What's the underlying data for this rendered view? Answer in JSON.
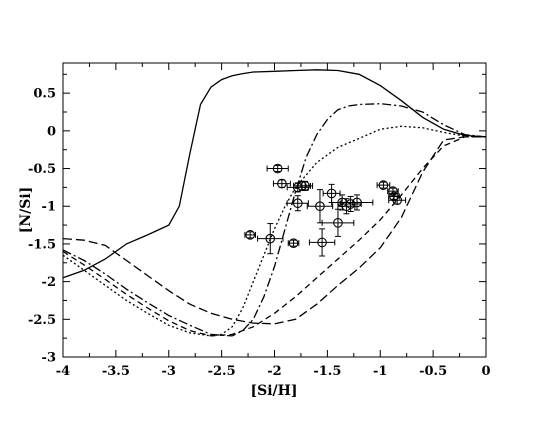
{
  "chart_data": {
    "type": "scatter",
    "xlabel": "[Si/H]",
    "ylabel": "[N/Si]",
    "xlim": [
      -4,
      0
    ],
    "ylim": [
      -3,
      0.9
    ],
    "x_ticks": [
      -4,
      -3.5,
      -3,
      -2.5,
      -2,
      -1.5,
      -1,
      -0.5,
      0
    ],
    "x_tick_labels": [
      "-4",
      "-3.5",
      "-3",
      "-2.5",
      "-2",
      "-1.5",
      "-1",
      "-0.5",
      "0"
    ],
    "y_ticks": [
      -3,
      -2.5,
      -2,
      -1.5,
      -1,
      -0.5,
      0,
      0.5
    ],
    "y_tick_labels": [
      "-3",
      "-2.5",
      "-2",
      "-1.5",
      "-1",
      "-0.5",
      "0",
      "0.5"
    ],
    "grid": false,
    "series": [
      {
        "style": "solid",
        "x": [
          -4,
          -3.8,
          -3.6,
          -3.4,
          -3.2,
          -3.0,
          -2.9,
          -2.8,
          -2.7,
          -2.6,
          -2.5,
          -2.4,
          -2.3,
          -2.2,
          -2.0,
          -1.8,
          -1.6,
          -1.4,
          -1.2,
          -1.0,
          -0.8,
          -0.6,
          -0.4,
          -0.2,
          0
        ],
        "y": [
          -1.95,
          -1.85,
          -1.7,
          -1.5,
          -1.38,
          -1.25,
          -1.0,
          -0.3,
          0.35,
          0.58,
          0.68,
          0.73,
          0.76,
          0.78,
          0.79,
          0.8,
          0.81,
          0.8,
          0.75,
          0.6,
          0.4,
          0.18,
          0.02,
          -0.06,
          -0.08
        ]
      },
      {
        "style": "dash",
        "x": [
          -4,
          -3.8,
          -3.6,
          -3.4,
          -3.2,
          -3.0,
          -2.8,
          -2.6,
          -2.4,
          -2.2,
          -2.0,
          -1.8,
          -1.6,
          -1.4,
          -1.2,
          -1.0,
          -0.8,
          -0.6,
          -0.4,
          -0.2,
          0
        ],
        "y": [
          -1.43,
          -1.45,
          -1.52,
          -1.72,
          -1.92,
          -2.12,
          -2.3,
          -2.42,
          -2.5,
          -2.55,
          -2.56,
          -2.5,
          -2.3,
          -2.05,
          -1.82,
          -1.55,
          -1.15,
          -0.55,
          -0.12,
          -0.08,
          -0.08
        ]
      },
      {
        "style": "dashdot",
        "x": [
          -4,
          -3.8,
          -3.6,
          -3.4,
          -3.2,
          -3.0,
          -2.8,
          -2.6,
          -2.4,
          -2.3,
          -2.2,
          -2.1,
          -2.0,
          -1.9,
          -1.8,
          -1.7,
          -1.6,
          -1.5,
          -1.4,
          -1.3,
          -1.2,
          -1.0,
          -0.8,
          -0.6,
          -0.4,
          -0.2,
          0
        ],
        "y": [
          -1.58,
          -1.72,
          -1.9,
          -2.1,
          -2.28,
          -2.45,
          -2.58,
          -2.7,
          -2.72,
          -2.65,
          -2.5,
          -2.2,
          -1.8,
          -1.3,
          -0.8,
          -0.35,
          -0.05,
          0.15,
          0.28,
          0.33,
          0.35,
          0.36,
          0.33,
          0.25,
          0.08,
          -0.05,
          -0.08
        ]
      },
      {
        "style": "dot",
        "x": [
          -4,
          -3.8,
          -3.6,
          -3.4,
          -3.2,
          -3.0,
          -2.8,
          -2.6,
          -2.5,
          -2.4,
          -2.3,
          -2.2,
          -2.1,
          -2.0,
          -1.9,
          -1.8,
          -1.6,
          -1.4,
          -1.2,
          -1.0,
          -0.8,
          -0.6,
          -0.4,
          -0.2,
          0
        ],
        "y": [
          -1.65,
          -1.85,
          -2.05,
          -2.25,
          -2.42,
          -2.58,
          -2.68,
          -2.72,
          -2.7,
          -2.6,
          -2.35,
          -2.0,
          -1.65,
          -1.3,
          -1.0,
          -0.75,
          -0.42,
          -0.22,
          -0.1,
          0.02,
          0.06,
          0.04,
          -0.02,
          -0.07,
          -0.08
        ]
      },
      {
        "style": "longdash",
        "x": [
          -4,
          -3.8,
          -3.6,
          -3.4,
          -3.2,
          -3.0,
          -2.8,
          -2.6,
          -2.4,
          -2.2,
          -2.0,
          -1.8,
          -1.6,
          -1.4,
          -1.2,
          -1.0,
          -0.8,
          -0.6,
          -0.4,
          -0.2,
          0
        ],
        "y": [
          -1.6,
          -1.78,
          -1.97,
          -2.17,
          -2.35,
          -2.52,
          -2.65,
          -2.72,
          -2.7,
          -2.6,
          -2.42,
          -2.2,
          -1.95,
          -1.7,
          -1.45,
          -1.18,
          -0.85,
          -0.5,
          -0.2,
          -0.08,
          -0.08
        ]
      }
    ],
    "points": [
      {
        "x": -2.23,
        "y": -1.38,
        "xerr": 0.05,
        "yerr": 0.04
      },
      {
        "x": -2.04,
        "y": -1.43,
        "xerr": 0.12,
        "yerr": 0.2
      },
      {
        "x": -1.82,
        "y": -1.49,
        "xerr": 0.05,
        "yerr": 0.04
      },
      {
        "x": -1.97,
        "y": -0.5,
        "xerr": 0.1,
        "yerr": 0.04
      },
      {
        "x": -1.93,
        "y": -0.7,
        "xerr": 0.08,
        "yerr": 0.05
      },
      {
        "x": -1.78,
        "y": -0.75,
        "xerr": 0.1,
        "yerr": 0.06
      },
      {
        "x": -1.74,
        "y": -0.73,
        "xerr": 0.08,
        "yerr": 0.06
      },
      {
        "x": -1.71,
        "y": -0.73,
        "xerr": 0.07,
        "yerr": 0.06
      },
      {
        "x": -1.78,
        "y": -0.96,
        "xerr": 0.1,
        "yerr": 0.1
      },
      {
        "x": -1.57,
        "y": -1.0,
        "xerr": 0.12,
        "yerr": 0.22
      },
      {
        "x": -1.55,
        "y": -1.48,
        "xerr": 0.12,
        "yerr": 0.18
      },
      {
        "x": -1.46,
        "y": -0.83,
        "xerr": 0.08,
        "yerr": 0.12
      },
      {
        "x": -1.4,
        "y": -1.22,
        "xerr": 0.15,
        "yerr": 0.18
      },
      {
        "x": -1.36,
        "y": -0.95,
        "xerr": 0.1,
        "yerr": 0.1
      },
      {
        "x": -1.32,
        "y": -1.0,
        "xerr": 0.08,
        "yerr": 0.1
      },
      {
        "x": -1.28,
        "y": -0.97,
        "xerr": 0.1,
        "yerr": 0.1
      },
      {
        "x": -1.22,
        "y": -0.95,
        "xerr": 0.15,
        "yerr": 0.1
      },
      {
        "x": -0.97,
        "y": -0.72,
        "xerr": 0.06,
        "yerr": 0.04
      },
      {
        "x": -0.88,
        "y": -0.8,
        "xerr": 0.05,
        "yerr": 0.04
      },
      {
        "x": -0.87,
        "y": -0.87,
        "xerr": 0.05,
        "yerr": 0.04
      },
      {
        "x": -0.84,
        "y": -0.92,
        "xerr": 0.08,
        "yerr": 0.05
      }
    ]
  }
}
